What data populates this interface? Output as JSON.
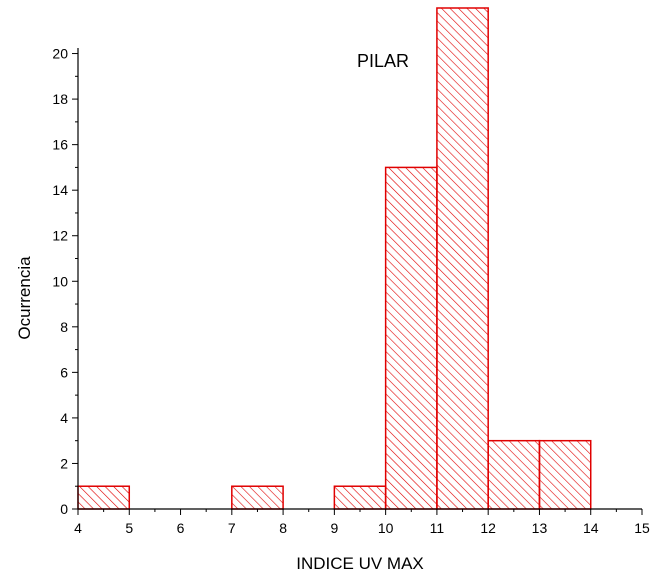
{
  "chart_data": {
    "type": "bar",
    "title": "",
    "annotation": "PILAR",
    "xlabel": "INDICE UV MAX",
    "ylabel": "Ocurrencia",
    "xlim": [
      4,
      15
    ],
    "ylim": [
      0,
      22
    ],
    "x_ticks": [
      "4",
      "5",
      "6",
      "7",
      "8",
      "9",
      "10",
      "11",
      "12",
      "13",
      "14",
      "15"
    ],
    "y_ticks": [
      "0",
      "2",
      "4",
      "6",
      "8",
      "10",
      "12",
      "14",
      "16",
      "18",
      "20"
    ],
    "bins": [
      {
        "start": 4,
        "end": 5,
        "value": 1
      },
      {
        "start": 7,
        "end": 8,
        "value": 1
      },
      {
        "start": 9,
        "end": 10,
        "value": 1
      },
      {
        "start": 10,
        "end": 11,
        "value": 15
      },
      {
        "start": 11,
        "end": 12,
        "value": 22
      },
      {
        "start": 12,
        "end": 13,
        "value": 3
      },
      {
        "start": 13,
        "end": 14,
        "value": 3
      }
    ],
    "bar_color": "#e00000",
    "bar_pattern": "diagonal-hatch",
    "grid": false
  }
}
